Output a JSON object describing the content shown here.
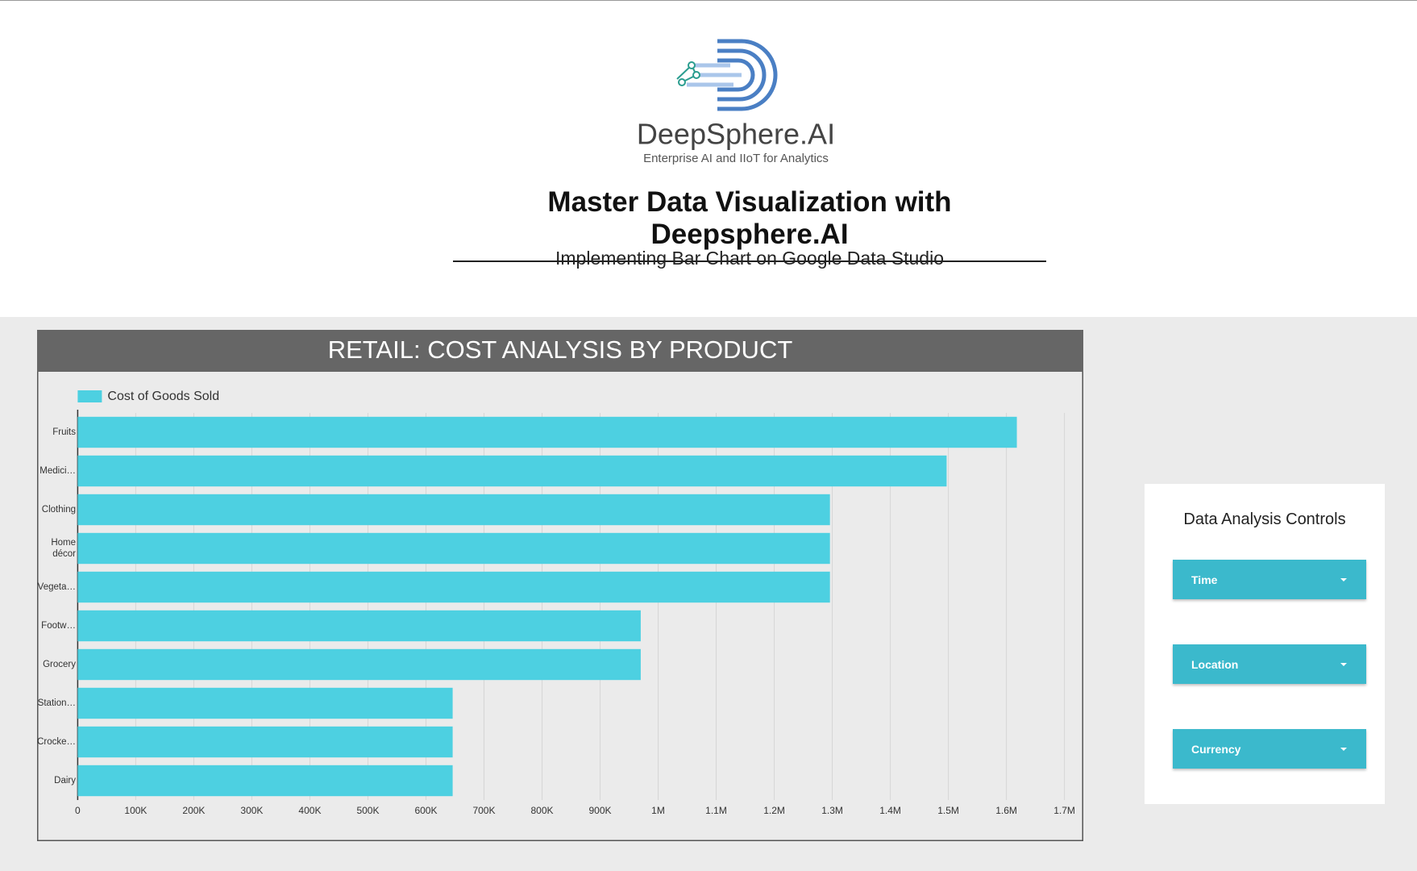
{
  "header": {
    "logo_name": "DeepSphere.AI",
    "logo_tagline": "Enterprise AI and IIoT for Analytics",
    "title": "Master Data Visualization with Deepsphere.AI",
    "subtitle": "Implementing Bar Chart on Google Data Studio"
  },
  "chart_data": {
    "type": "bar",
    "orientation": "horizontal",
    "title": "RETAIL: COST ANALYSIS BY PRODUCT",
    "categories": [
      "Fruits",
      "Medici…",
      "Clothing",
      "Home décor",
      "Vegeta…",
      "Footw…",
      "Grocery",
      "Station…",
      "Crocke…",
      "Dairy"
    ],
    "series": [
      {
        "name": "Cost of Goods Sold",
        "color": "#4dd0e1",
        "values": [
          1618000,
          1497000,
          1296000,
          1296000,
          1296000,
          970000,
          970000,
          646000,
          646000,
          646000
        ]
      }
    ],
    "xlim": [
      0,
      1700000
    ],
    "xticks": [
      0,
      {
        "value": 100000,
        "label": "100K"
      },
      {
        "value": 200000,
        "label": "200K"
      },
      {
        "value": 300000,
        "label": "300K"
      },
      {
        "value": 400000,
        "label": "400K"
      },
      {
        "value": 500000,
        "label": "500K"
      },
      {
        "value": 600000,
        "label": "600K"
      },
      {
        "value": 700000,
        "label": "700K"
      },
      {
        "value": 800000,
        "label": "800K"
      },
      {
        "value": 900000,
        "label": "900K"
      },
      {
        "value": 1000000,
        "label": "1M"
      },
      {
        "value": 1100000,
        "label": "1.1M"
      },
      {
        "value": 1200000,
        "label": "1.2M"
      },
      {
        "value": 1300000,
        "label": "1.3M"
      },
      {
        "value": 1400000,
        "label": "1.4M"
      },
      {
        "value": 1500000,
        "label": "1.5M"
      },
      {
        "value": 1600000,
        "label": "1.6M"
      },
      {
        "value": 1700000,
        "label": "1.7M"
      }
    ],
    "grid": true,
    "legend": "top-left"
  },
  "controls": {
    "title": "Data Analysis Controls",
    "items": [
      "Time",
      "Location",
      "Currency"
    ]
  }
}
